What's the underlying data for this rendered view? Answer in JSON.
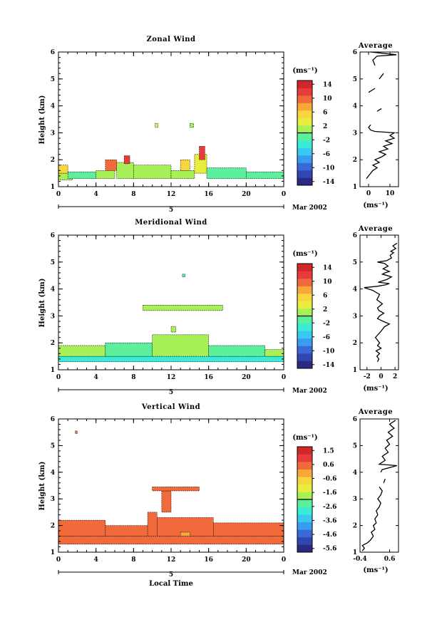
{
  "chart_data": [
    {
      "type": "heatmap",
      "title": "Zonal Wind",
      "xlabel": "",
      "ylabel": "Height (km)",
      "xlim": [
        0,
        24
      ],
      "ylim": [
        1,
        6
      ],
      "xticks": [
        "0",
        "4",
        "8",
        "12",
        "16",
        "20",
        "0"
      ],
      "yticks": [
        "1",
        "2",
        "3",
        "4",
        "5",
        "6"
      ],
      "date_day": "5",
      "date_label": "Mar 2002",
      "colorbar": {
        "unit": "(ms⁻¹)",
        "ticks": [
          "14",
          "10",
          "6",
          "2",
          "-2",
          "-6",
          "-10",
          "-14"
        ],
        "min": -16,
        "max": 16
      },
      "colors": [
        "#2a2a80",
        "#3046b0",
        "#3a68d8",
        "#3a9cf0",
        "#38c8f0",
        "#38ecd6",
        "#5cf09c",
        "#a8f058",
        "#e8ee3c",
        "#f8d640",
        "#f8a83a",
        "#f06a3c",
        "#e83c3c",
        "#d02828"
      ],
      "cells": [
        {
          "t0": 0.0,
          "t1": 1.5,
          "h0": 1.25,
          "h1": 1.5,
          "v": 0
        },
        {
          "t0": 0.0,
          "t1": 1.0,
          "h0": 1.5,
          "h1": 1.8,
          "v": 6
        },
        {
          "t0": 1.0,
          "t1": 4.0,
          "h0": 1.3,
          "h1": 1.55,
          "v": -1
        },
        {
          "t0": 4.0,
          "t1": 6.0,
          "h0": 1.3,
          "h1": 1.6,
          "v": 0
        },
        {
          "t0": 5.0,
          "t1": 6.2,
          "h0": 1.6,
          "h1": 2.0,
          "v": 11
        },
        {
          "t0": 6.2,
          "t1": 8.0,
          "h0": 1.3,
          "h1": 1.9,
          "v": 1
        },
        {
          "t0": 7.0,
          "t1": 7.6,
          "h0": 1.85,
          "h1": 2.15,
          "v": 13
        },
        {
          "t0": 8.0,
          "t1": 12.0,
          "h0": 1.3,
          "h1": 1.8,
          "v": 0
        },
        {
          "t0": 12.0,
          "t1": 14.5,
          "h0": 1.3,
          "h1": 1.6,
          "v": 2
        },
        {
          "t0": 13.0,
          "t1": 14.0,
          "h0": 1.6,
          "h1": 2.0,
          "v": 6
        },
        {
          "t0": 14.5,
          "t1": 15.8,
          "h0": 1.5,
          "h1": 2.2,
          "v": 4
        },
        {
          "t0": 15.0,
          "t1": 15.6,
          "h0": 2.0,
          "h1": 2.5,
          "v": 12
        },
        {
          "t0": 15.8,
          "t1": 20.0,
          "h0": 1.3,
          "h1": 1.7,
          "v": -1
        },
        {
          "t0": 20.0,
          "t1": 24.0,
          "h0": 1.3,
          "h1": 1.55,
          "v": -2
        },
        {
          "t0": 10.3,
          "t1": 10.6,
          "h0": 3.2,
          "h1": 3.35,
          "v": 3
        },
        {
          "t0": 14.0,
          "t1": 14.4,
          "h0": 3.2,
          "h1": 3.35,
          "v": 2
        }
      ],
      "profile": {
        "title": "Average",
        "xlim": [
          -4,
          14
        ],
        "xticks": [
          "0",
          "10"
        ],
        "xlabel": "(ms⁻¹)",
        "yticks": [
          "1",
          "2",
          "3",
          "4",
          "5",
          "6"
        ],
        "points": [
          [
            -1,
            1.3
          ],
          [
            0,
            1.4
          ],
          [
            1,
            1.5
          ],
          [
            2,
            1.6
          ],
          [
            4,
            1.7
          ],
          [
            2,
            1.8
          ],
          [
            5,
            1.9
          ],
          [
            3,
            2.0
          ],
          [
            6,
            2.1
          ],
          [
            8,
            2.2
          ],
          [
            5,
            2.3
          ],
          [
            9,
            2.4
          ],
          [
            7,
            2.5
          ],
          [
            11,
            2.6
          ],
          [
            8,
            2.7
          ],
          [
            12,
            2.8
          ],
          [
            10,
            2.9
          ],
          [
            12,
            3.0
          ],
          [
            3,
            3.05
          ],
          [
            1,
            3.1
          ],
          [
            0,
            3.2
          ],
          [
            1,
            3.3
          ],
          [
            null,
            null
          ],
          [
            4,
            3.8
          ],
          [
            6,
            3.9
          ],
          [
            null,
            null
          ],
          [
            0,
            4.5
          ],
          [
            3,
            4.65
          ],
          [
            null,
            null
          ],
          [
            5,
            5.0
          ],
          [
            7,
            5.2
          ],
          [
            null,
            null
          ],
          [
            3,
            5.5
          ],
          [
            2,
            5.7
          ],
          [
            4,
            5.85
          ],
          [
            13,
            5.9
          ],
          [
            1,
            6.0
          ]
        ]
      }
    },
    {
      "type": "heatmap",
      "title": "Meridional Wind",
      "xlabel": "",
      "ylabel": "Height (km)",
      "xlim": [
        0,
        24
      ],
      "ylim": [
        1,
        6
      ],
      "xticks": [
        "0",
        "4",
        "8",
        "12",
        "16",
        "20",
        "0"
      ],
      "yticks": [
        "1",
        "2",
        "3",
        "4",
        "5",
        "6"
      ],
      "date_day": "5",
      "date_label": "Mar 2002",
      "colorbar": {
        "unit": "(ms⁻¹)",
        "ticks": [
          "14",
          "10",
          "6",
          "2",
          "-2",
          "-6",
          "-10",
          "-14"
        ],
        "min": -16,
        "max": 16
      },
      "colors": [
        "#2a2a80",
        "#3046b0",
        "#3a68d8",
        "#3a9cf0",
        "#38c8f0",
        "#38ecd6",
        "#5cf09c",
        "#a8f058",
        "#e8ee3c",
        "#f8d640",
        "#f8a83a",
        "#f06a3c",
        "#e83c3c",
        "#d02828"
      ],
      "cells": [
        {
          "t0": 0.0,
          "t1": 24.0,
          "h0": 1.3,
          "h1": 1.5,
          "v": -3
        },
        {
          "t0": 0.0,
          "t1": 5.0,
          "h0": 1.5,
          "h1": 1.9,
          "v": 0
        },
        {
          "t0": 5.0,
          "t1": 10.0,
          "h0": 1.5,
          "h1": 2.0,
          "v": -1
        },
        {
          "t0": 10.0,
          "t1": 16.0,
          "h0": 1.5,
          "h1": 2.3,
          "v": 0
        },
        {
          "t0": 16.0,
          "t1": 22.0,
          "h0": 1.5,
          "h1": 1.9,
          "v": -1
        },
        {
          "t0": 22.0,
          "t1": 24.0,
          "h0": 1.5,
          "h1": 1.75,
          "v": 0
        },
        {
          "t0": 12.0,
          "t1": 12.5,
          "h0": 2.4,
          "h1": 2.6,
          "v": 1
        },
        {
          "t0": 9.0,
          "t1": 17.5,
          "h0": 3.2,
          "h1": 3.4,
          "v": 0
        },
        {
          "t0": 13.2,
          "t1": 13.5,
          "h0": 4.45,
          "h1": 4.55,
          "v": -1
        }
      ],
      "profile": {
        "title": "Average",
        "xlim": [
          -3,
          2.5
        ],
        "xticks": [
          "-2",
          "0",
          "2"
        ],
        "xlabel": "(ms⁻¹)",
        "yticks": [
          "1",
          "2",
          "3",
          "4",
          "5",
          "6"
        ],
        "points": [
          [
            -0.5,
            1.3
          ],
          [
            -0.3,
            1.4
          ],
          [
            -0.6,
            1.5
          ],
          [
            -0.2,
            1.6
          ],
          [
            -0.7,
            1.7
          ],
          [
            0,
            1.8
          ],
          [
            -0.5,
            1.9
          ],
          [
            -0.2,
            2.0
          ],
          [
            -0.8,
            2.2
          ],
          [
            -0.1,
            2.4
          ],
          [
            0.5,
            2.6
          ],
          [
            1.2,
            2.7
          ],
          [
            0.3,
            2.8
          ],
          [
            -0.5,
            2.9
          ],
          [
            -0.2,
            3.0
          ],
          [
            0.4,
            3.1
          ],
          [
            -0.3,
            3.2
          ],
          [
            -0.5,
            3.3
          ],
          [
            0.2,
            3.45
          ],
          [
            -0.6,
            3.6
          ],
          [
            -0.2,
            3.8
          ],
          [
            -1.2,
            3.95
          ],
          [
            -2.4,
            4.05
          ],
          [
            -0.5,
            4.1
          ],
          [
            0.6,
            4.15
          ],
          [
            1.2,
            4.2
          ],
          [
            -0.4,
            4.25
          ],
          [
            0.8,
            4.35
          ],
          [
            1.5,
            4.45
          ],
          [
            0.2,
            4.55
          ],
          [
            0.6,
            4.6
          ],
          [
            1.2,
            4.65
          ],
          [
            0.3,
            4.75
          ],
          [
            1.0,
            4.85
          ],
          [
            0.5,
            4.95
          ],
          [
            -0.5,
            5.0
          ],
          [
            0.8,
            5.05
          ],
          [
            1.5,
            5.15
          ],
          [
            1.3,
            5.25
          ],
          [
            1.8,
            5.35
          ],
          [
            1.4,
            5.4
          ],
          [
            2.1,
            5.5
          ],
          [
            1.7,
            5.6
          ],
          [
            2.3,
            5.7
          ]
        ]
      }
    },
    {
      "type": "heatmap",
      "title": "Vertical Wind",
      "xlabel": "Local Time",
      "ylabel": "Height (km)",
      "xlim": [
        0,
        24
      ],
      "ylim": [
        1,
        6
      ],
      "xticks": [
        "0",
        "4",
        "8",
        "12",
        "16",
        "20",
        "0"
      ],
      "yticks": [
        "1",
        "2",
        "3",
        "4",
        "5",
        "6"
      ],
      "date_day": "5",
      "date_label": "Mar 2002",
      "colorbar": {
        "unit": "(ms⁻¹)",
        "ticks": [
          "1.5",
          "0.6",
          "-0.6",
          "-1.6",
          "-2.6",
          "-3.6",
          "-4.6",
          "-5.6"
        ],
        "min": -6.1,
        "max": 2.0
      },
      "colors": [
        "#2a2a80",
        "#3046b0",
        "#3a68d8",
        "#3a9cf0",
        "#38c8f0",
        "#38ecd6",
        "#5cf09c",
        "#a8f058",
        "#e8ee3c",
        "#f8d640",
        "#f8a83a",
        "#f06a3c",
        "#e83c3c",
        "#d02828"
      ],
      "cells": [
        {
          "t0": 0.0,
          "t1": 24.0,
          "h0": 1.3,
          "h1": 1.6,
          "v": 0.3
        },
        {
          "t0": 0.0,
          "t1": 5.0,
          "h0": 1.6,
          "h1": 2.2,
          "v": 0.6
        },
        {
          "t0": 5.0,
          "t1": 9.5,
          "h0": 1.6,
          "h1": 2.0,
          "v": 0.3
        },
        {
          "t0": 9.5,
          "t1": 10.5,
          "h0": 1.6,
          "h1": 2.5,
          "v": 0.8
        },
        {
          "t0": 10.5,
          "t1": 16.5,
          "h0": 1.6,
          "h1": 2.3,
          "v": 0.4
        },
        {
          "t0": 16.5,
          "t1": 24.0,
          "h0": 1.6,
          "h1": 2.1,
          "v": 0.4
        },
        {
          "t0": 11.0,
          "t1": 12.0,
          "h0": 2.5,
          "h1": 3.3,
          "v": 0.6
        },
        {
          "t0": 10.0,
          "t1": 15.0,
          "h0": 3.3,
          "h1": 3.45,
          "v": 0.7
        },
        {
          "t0": 13.0,
          "t1": 14.0,
          "h0": 1.6,
          "h1": 1.75,
          "v": -0.1
        },
        {
          "t0": 1.8,
          "t1": 2.0,
          "h0": 5.45,
          "h1": 5.55,
          "v": 0.6
        }
      ],
      "profile": {
        "title": "Average",
        "xlim": [
          -0.4,
          0.9
        ],
        "xticks": [
          "-0.4",
          "0.6"
        ],
        "xlabel": "(ms⁻¹)",
        "yticks": [
          "1",
          "2",
          "3",
          "4",
          "5",
          "6"
        ],
        "points": [
          [
            -0.32,
            1.05
          ],
          [
            -0.25,
            1.15
          ],
          [
            -0.32,
            1.25
          ],
          [
            -0.15,
            1.35
          ],
          [
            -0.05,
            1.45
          ],
          [
            0.05,
            1.6
          ],
          [
            -0.02,
            1.75
          ],
          [
            0.1,
            1.85
          ],
          [
            0.05,
            2.0
          ],
          [
            0.15,
            2.1
          ],
          [
            0.1,
            2.25
          ],
          [
            0.2,
            2.4
          ],
          [
            0.15,
            2.55
          ],
          [
            0.25,
            2.7
          ],
          [
            0.3,
            2.85
          ],
          [
            0.2,
            3.0
          ],
          [
            0.3,
            3.15
          ],
          [
            0.35,
            3.3
          ],
          [
            0.25,
            3.45
          ],
          [
            null,
            null
          ],
          [
            0.4,
            3.6
          ],
          [
            0.45,
            3.75
          ],
          [
            null,
            null
          ],
          [
            0.3,
            4.0
          ],
          [
            0.35,
            4.1
          ],
          [
            0.85,
            4.25
          ],
          [
            0.25,
            4.3
          ],
          [
            0.45,
            4.45
          ],
          [
            0.35,
            4.6
          ],
          [
            0.55,
            4.75
          ],
          [
            0.45,
            4.9
          ],
          [
            0.6,
            5.05
          ],
          [
            0.5,
            5.2
          ],
          [
            0.7,
            5.35
          ],
          [
            0.55,
            5.5
          ],
          [
            0.75,
            5.65
          ],
          [
            0.6,
            5.8
          ],
          [
            0.8,
            5.95
          ]
        ]
      }
    }
  ]
}
